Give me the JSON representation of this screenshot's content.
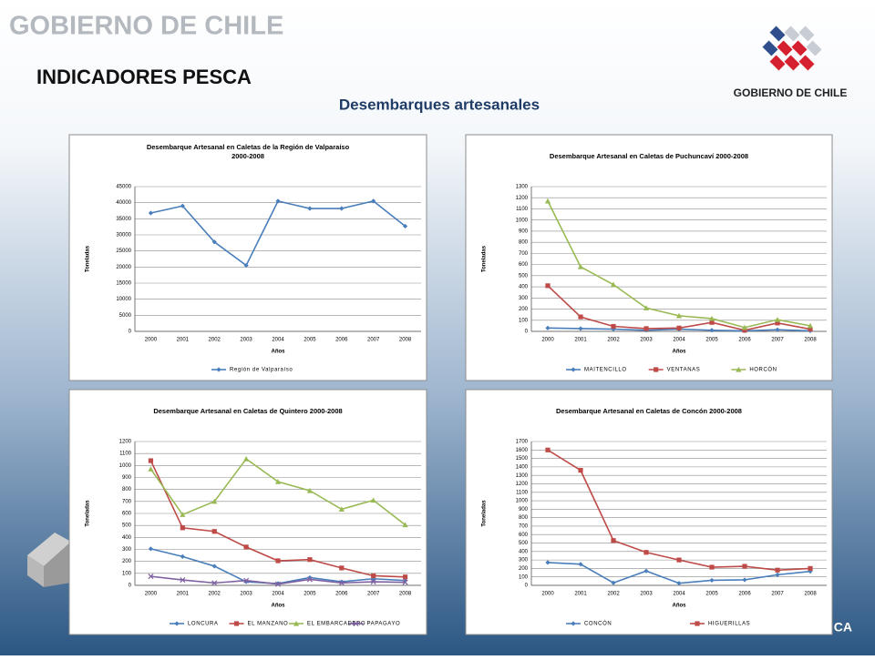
{
  "header": {
    "brand": "GOBIERNO DE CHILE",
    "title": "INDICADORES PESCA",
    "subtitle": "Desembarques artesanales",
    "logo_text": "GOBIERNO DE CHILE",
    "footer": "CA"
  },
  "chart_data": [
    {
      "type": "line",
      "title": "Desembarque Artesanal en Caletas de la Región de Valparaíso",
      "subtitle": "2000-2008",
      "ylabel": "Toneladas",
      "xlabel": "Años",
      "categories": [
        "2000",
        "2001",
        "2002",
        "2003",
        "2004",
        "2005",
        "2006",
        "2007",
        "2008"
      ],
      "ylim": [
        0,
        45000
      ],
      "yticks": [
        0,
        5000,
        10000,
        15000,
        20000,
        25000,
        30000,
        35000,
        40000,
        45000
      ],
      "grid": true,
      "series": [
        {
          "name": "Región de Valparaíso",
          "color": "#4a7ebb",
          "marker": "diamond",
          "values": [
            36800,
            39000,
            27800,
            20500,
            40500,
            38200,
            38200,
            40500,
            32700
          ]
        }
      ]
    },
    {
      "type": "line",
      "title": "Desembarque Artesanal en Caletas de Puchuncaví 2000-2008",
      "ylabel": "Toneladas",
      "xlabel": "Años",
      "categories": [
        "2000",
        "2001",
        "2002",
        "2003",
        "2004",
        "2005",
        "2006",
        "2007",
        "2008"
      ],
      "ylim": [
        0,
        1300
      ],
      "yticks": [
        0,
        100,
        200,
        300,
        400,
        500,
        600,
        700,
        800,
        900,
        1000,
        1100,
        1200,
        1300
      ],
      "grid": true,
      "series": [
        {
          "name": "MAITENCILLO",
          "color": "#4a7ebb",
          "marker": "diamond",
          "values": [
            30,
            25,
            20,
            10,
            20,
            10,
            5,
            15,
            5
          ]
        },
        {
          "name": "VENTANAS",
          "color": "#be4b48",
          "marker": "square",
          "values": [
            410,
            130,
            45,
            25,
            30,
            80,
            10,
            75,
            20
          ]
        },
        {
          "name": "HORCÓN",
          "color": "#98b954",
          "marker": "triangle",
          "values": [
            1170,
            580,
            420,
            210,
            140,
            115,
            35,
            105,
            50
          ]
        }
      ]
    },
    {
      "type": "line",
      "title": "Desembarque Artesanal en Caletas de Quintero 2000-2008",
      "ylabel": "Toneladas",
      "xlabel": "Años",
      "categories": [
        "2000",
        "2001",
        "2002",
        "2003",
        "2004",
        "2005",
        "2006",
        "2007",
        "2008"
      ],
      "ylim": [
        0,
        1200
      ],
      "yticks": [
        0,
        100,
        200,
        300,
        400,
        500,
        600,
        700,
        800,
        900,
        1000,
        1100,
        1200
      ],
      "grid": true,
      "series": [
        {
          "name": "LONCURA",
          "color": "#4a7ebb",
          "marker": "diamond",
          "values": [
            305,
            240,
            160,
            30,
            15,
            65,
            30,
            55,
            40
          ]
        },
        {
          "name": "EL MANZANO",
          "color": "#be4b48",
          "marker": "square",
          "values": [
            1040,
            480,
            450,
            320,
            205,
            215,
            145,
            80,
            70
          ]
        },
        {
          "name": "EL EMBARCADERO",
          "color": "#98b954",
          "marker": "triangle",
          "values": [
            970,
            590,
            700,
            1055,
            865,
            790,
            635,
            710,
            505
          ]
        },
        {
          "name": "PAPAGAYO",
          "color": "#7d60a0",
          "marker": "x",
          "values": [
            75,
            45,
            20,
            40,
            10,
            50,
            20,
            30,
            25
          ]
        }
      ]
    },
    {
      "type": "line",
      "title": "Desembarque Artesanal en Caletas de Concón 2000-2008",
      "ylabel": "Toneladas",
      "xlabel": "Años",
      "categories": [
        "2000",
        "2001",
        "2002",
        "2003",
        "2004",
        "2005",
        "2006",
        "2007",
        "2008"
      ],
      "ylim": [
        0,
        1700
      ],
      "yticks": [
        0,
        100,
        200,
        300,
        400,
        500,
        600,
        700,
        800,
        900,
        1000,
        1100,
        1200,
        1300,
        1400,
        1500,
        1600,
        1700
      ],
      "grid": true,
      "series": [
        {
          "name": "CONCÓN",
          "color": "#4a7ebb",
          "marker": "diamond",
          "values": [
            270,
            250,
            30,
            170,
            25,
            60,
            65,
            125,
            165
          ]
        },
        {
          "name": "HIGUERILLAS",
          "color": "#be4b48",
          "marker": "square",
          "values": [
            1600,
            1360,
            530,
            390,
            300,
            215,
            225,
            180,
            200
          ]
        }
      ]
    }
  ]
}
